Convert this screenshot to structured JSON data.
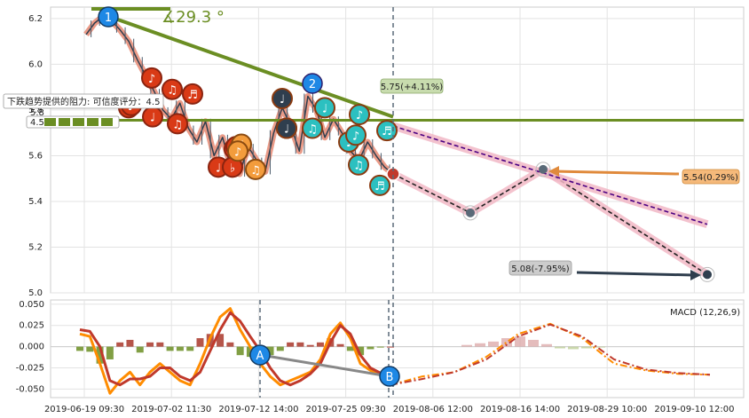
{
  "chart_data": [
    {
      "type": "line",
      "panel": "price",
      "ylim": [
        5.0,
        6.25
      ],
      "yticks": [
        5.0,
        5.2,
        5.4,
        5.6,
        5.8,
        6.0,
        6.2
      ],
      "xticks": [
        "2019-06-19 09:30",
        "2019-07-02 11:30",
        "2019-07-12 14:00",
        "2019-07-25 09:30",
        "2019-08-06 12:00",
        "2019-08-16 14:00",
        "2019-08-29 10:00",
        "2019-09-10 12:00"
      ],
      "grid": true,
      "series": [
        {
          "role": "price",
          "color": "#2f3e4e",
          "values": [
            6.13,
            6.18,
            6.21,
            6.19,
            6.15,
            6.1,
            6.02,
            5.95,
            5.88,
            5.8,
            5.76,
            5.83,
            5.72,
            5.66,
            5.75,
            5.6,
            5.68,
            5.55,
            5.52,
            5.64,
            5.58,
            5.53,
            5.7,
            5.81,
            5.73,
            5.62,
            5.86,
            5.8,
            5.68,
            5.76,
            5.7,
            5.62,
            5.58,
            5.66,
            5.6,
            5.55,
            5.52
          ]
        },
        {
          "role": "projection",
          "color": "#222222",
          "values": [
            5.52,
            5.35,
            5.54,
            5.08
          ]
        }
      ],
      "trendlines": [
        {
          "role": "resistance-horizontal",
          "color": "#6b8e23",
          "value": 5.755
        },
        {
          "role": "resistance-descending",
          "color": "#6b8e23",
          "from": 6.22,
          "to": 5.77
        },
        {
          "role": "projection-band-upper",
          "color": "#4b0082",
          "from": 5.73,
          "to": 5.3
        }
      ],
      "annotations": {
        "angle": "∡29.3 °",
        "marker_1": "1",
        "marker_2": "2",
        "label_up": "5.75(+4.11%)",
        "label_mid": "5.54(0.29%)",
        "label_low": "5.08(-7.95%)",
        "tooltip_title": "下跌趋势提供的阻力: 可信度评分：4.5",
        "tooltip_y": "5.8",
        "tooltip_score": "4.5"
      },
      "note_glyphs_red": [
        "♪",
        "♪",
        "♫",
        "♬",
        "♩",
        "♪",
        "♫",
        "♩",
        "♬",
        "♭",
        "♪"
      ],
      "note_glyphs_orange": [
        "♩",
        "♪",
        "♫"
      ],
      "note_glyphs_teal": [
        "♩",
        "♪",
        "♫",
        "♬",
        "♩",
        "♪",
        "♫",
        "♬",
        "♩"
      ],
      "note_glyphs_dark": [
        "♩",
        "♩"
      ]
    },
    {
      "type": "bar",
      "panel": "macd",
      "title": "MACD (12,26,9)",
      "ylim": [
        -0.06,
        0.055
      ],
      "yticks": [
        -0.05,
        -0.025,
        0.0,
        0.025,
        0.05
      ],
      "markers": [
        "A",
        "B"
      ],
      "series": [
        {
          "name": "MACD",
          "color": "#ff8c00",
          "values": [
            0.015,
            0.012,
            -0.02,
            -0.055,
            -0.04,
            -0.03,
            -0.045,
            -0.03,
            -0.02,
            -0.03,
            -0.04,
            -0.045,
            -0.02,
            0.01,
            0.035,
            0.045,
            0.02,
            0.0,
            -0.02,
            -0.035,
            -0.045,
            -0.04,
            -0.035,
            -0.03,
            -0.015,
            0.015,
            0.028,
            0.01,
            -0.02,
            -0.028,
            -0.032,
            -0.033
          ]
        },
        {
          "name": "Signal",
          "color": "#c0392b",
          "values": [
            0.02,
            0.018,
            0.0,
            -0.04,
            -0.045,
            -0.038,
            -0.038,
            -0.035,
            -0.025,
            -0.025,
            -0.035,
            -0.04,
            -0.03,
            -0.005,
            0.02,
            0.04,
            0.03,
            0.012,
            -0.005,
            -0.025,
            -0.04,
            -0.045,
            -0.04,
            -0.032,
            -0.02,
            0.005,
            0.025,
            0.015,
            -0.01,
            -0.025,
            -0.031,
            -0.033
          ]
        },
        {
          "name": "Histogram",
          "color_pos": "#a9372a",
          "color_neg": "#6b8e23",
          "values": [
            -0.005,
            -0.006,
            -0.02,
            -0.015,
            0.005,
            0.008,
            -0.007,
            0.005,
            0.005,
            -0.005,
            -0.005,
            -0.005,
            0.01,
            0.015,
            0.015,
            0.005,
            -0.01,
            -0.012,
            -0.015,
            -0.01,
            -0.005,
            0.005,
            0.005,
            0.002,
            0.005,
            0.01,
            0.003,
            -0.005,
            -0.01,
            -0.003,
            -0.001,
            0.0
          ]
        }
      ]
    }
  ]
}
